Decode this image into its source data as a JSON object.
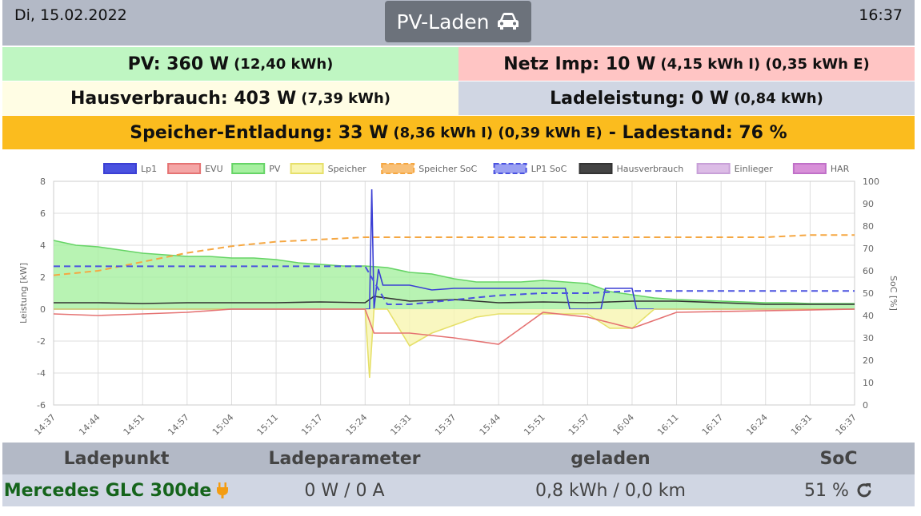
{
  "header": {
    "date": "Di, 15.02.2022",
    "mode_label": "PV-Laden",
    "time": "16:37"
  },
  "summary": {
    "pv_main": "PV: 360 W",
    "pv_sub": "(12,40 kWh)",
    "netz_main": "Netz Imp: 10 W",
    "netz_sub": "(4,15 kWh I) (0,35 kWh E)",
    "haus_main": "Hausverbrauch: 403 W",
    "haus_sub": "(7,39 kWh)",
    "lade_main": "Ladeleistung: 0 W",
    "lade_sub": "(0,84 kWh)",
    "speicher_main": "Speicher-Entladung: 33 W",
    "speicher_sub": "(8,36 kWh I) (0,39 kWh E)",
    "speicher_soc": "- Ladestand: 76 %"
  },
  "colors": {
    "pv": "#bff6c2",
    "netz": "#ffc5c4",
    "haus": "#fffde4",
    "lade": "#d0d6e3",
    "speicher": "#fbbc1e",
    "header": "#b3b9c6",
    "vehicle": "#15641b"
  },
  "chart_data": {
    "type": "line",
    "ylabel": "Leistung [kW]",
    "y2label": "SoC [%]",
    "ylim": [
      -6,
      8
    ],
    "y2lim": [
      0,
      100
    ],
    "yticks": [
      -6,
      -4,
      -2,
      0,
      2,
      4,
      6,
      8
    ],
    "y2ticks": [
      0,
      10,
      20,
      30,
      40,
      50,
      60,
      70,
      80,
      90,
      100
    ],
    "categories": [
      "14:37",
      "14:44",
      "14:51",
      "14:57",
      "15:04",
      "15:11",
      "15:17",
      "15:24",
      "15:31",
      "15:37",
      "15:44",
      "15:51",
      "15:57",
      "16:04",
      "16:11",
      "16:17",
      "16:24",
      "16:31",
      "16:37"
    ],
    "legend": [
      {
        "name": "Lp1",
        "color": "#3b3fd4",
        "fill": "#4a52e0",
        "dash": false
      },
      {
        "name": "EVU",
        "color": "#e57373",
        "fill": "#f4a6a6",
        "dash": false
      },
      {
        "name": "PV",
        "color": "#66d466",
        "fill": "#a6f0a0",
        "dash": false
      },
      {
        "name": "Speicher",
        "color": "#e6e06a",
        "fill": "#f8f5b0",
        "dash": false
      },
      {
        "name": "Speicher SoC",
        "color": "#f5a742",
        "fill": "#f8c078",
        "dash": true
      },
      {
        "name": "LP1 SoC",
        "color": "#4a52e0",
        "fill": "#9aa0f2",
        "dash": true
      },
      {
        "name": "Hausverbrauch",
        "color": "#333333",
        "fill": "#444444",
        "dash": false
      },
      {
        "name": "Einlieger",
        "color": "#c8a0d8",
        "fill": "#dcbce6",
        "dash": false
      },
      {
        "name": "HAR",
        "color": "#c070c8",
        "fill": "#d890d8",
        "dash": false
      }
    ],
    "series": [
      {
        "name": "PV",
        "x": [
          0,
          0.5,
          1,
          1.5,
          2,
          2.5,
          3,
          3.5,
          4,
          4.5,
          5,
          5.5,
          6,
          6.5,
          7,
          7.5,
          8,
          8.5,
          9,
          9.5,
          10,
          10.5,
          11,
          11.5,
          12,
          12.5,
          13,
          13.5,
          14,
          14.5,
          15,
          15.5,
          16,
          16.5,
          17,
          17.5,
          18
        ],
        "y": [
          4.3,
          4.0,
          3.9,
          3.7,
          3.5,
          3.4,
          3.3,
          3.3,
          3.2,
          3.2,
          3.1,
          2.9,
          2.8,
          2.7,
          2.7,
          2.6,
          2.3,
          2.2,
          1.9,
          1.7,
          1.7,
          1.7,
          1.8,
          1.7,
          1.6,
          1.1,
          0.9,
          0.7,
          0.6,
          0.55,
          0.5,
          0.45,
          0.4,
          0.4,
          0.35,
          0.35,
          0.35
        ]
      },
      {
        "name": "Hausverbrauch",
        "x": [
          0,
          1,
          2,
          3,
          4,
          5,
          6,
          7,
          7.2,
          8,
          9,
          10,
          11,
          12,
          13,
          14,
          15,
          16,
          17,
          18
        ],
        "y": [
          0.4,
          0.4,
          0.35,
          0.4,
          0.4,
          0.4,
          0.45,
          0.4,
          0.8,
          0.5,
          0.6,
          0.4,
          0.45,
          0.4,
          0.5,
          0.5,
          0.4,
          0.3,
          0.3,
          0.3
        ]
      },
      {
        "name": "Lp1",
        "x": [
          0,
          7.1,
          7.15,
          7.2,
          7.3,
          7.4,
          8,
          8.5,
          9,
          9.5,
          10,
          10.5,
          11,
          11.5,
          11.6,
          12,
          12.3,
          12.4,
          13,
          13.1,
          13.2,
          18
        ],
        "y": [
          0,
          0,
          7.5,
          0,
          2.5,
          1.5,
          1.5,
          1.2,
          1.3,
          1.3,
          1.3,
          1.3,
          1.3,
          1.3,
          0,
          0,
          0,
          1.3,
          1.3,
          0,
          0,
          0
        ]
      },
      {
        "name": "Speicher",
        "x": [
          0,
          7,
          7.1,
          7.2,
          7.5,
          8,
          8.5,
          9,
          9.5,
          10,
          10.5,
          11,
          11.5,
          12,
          12.5,
          13,
          13.5,
          18
        ],
        "y": [
          0,
          0,
          -4.3,
          0,
          0,
          -2.3,
          -1.5,
          -1.0,
          -0.5,
          -0.3,
          -0.3,
          -0.3,
          -0.3,
          -0.3,
          -1.2,
          -1.2,
          0,
          0
        ]
      },
      {
        "name": "EVU",
        "x": [
          0,
          1,
          2,
          3,
          4,
          5,
          6,
          7,
          7.2,
          8,
          9,
          10,
          11,
          12,
          13,
          14,
          18
        ],
        "y": [
          -0.3,
          -0.4,
          -0.3,
          -0.2,
          0,
          0,
          0,
          0,
          -1.5,
          -1.5,
          -1.8,
          -2.2,
          -0.2,
          -0.5,
          -1.2,
          -0.2,
          0
        ]
      },
      {
        "name": "Speicher SoC",
        "x": [
          0,
          1,
          2,
          3,
          4,
          5,
          6,
          7,
          8,
          9,
          10,
          11,
          12,
          13,
          14,
          15,
          16,
          17,
          18
        ],
        "y": [
          58,
          60,
          64,
          68,
          71,
          73,
          74,
          75,
          75,
          75,
          75,
          75,
          75,
          75,
          75,
          75,
          75,
          76,
          76
        ]
      },
      {
        "name": "LP1 SoC",
        "x": [
          0,
          7,
          7.5,
          8,
          9,
          10,
          11,
          12,
          13,
          14,
          15,
          16,
          17,
          18
        ],
        "y": [
          62,
          62,
          45,
          45,
          47,
          49,
          50,
          50,
          51,
          51,
          51,
          51,
          51,
          51
        ]
      }
    ]
  },
  "table": {
    "headers": [
      "Ladepunkt",
      "Ladeparameter",
      "geladen",
      "SoC"
    ],
    "vehicle": "Mercedes GLC 300de",
    "params": "0 W / 0 A",
    "charged": "0,8 kWh / 0,0 km",
    "soc": "51 %"
  }
}
